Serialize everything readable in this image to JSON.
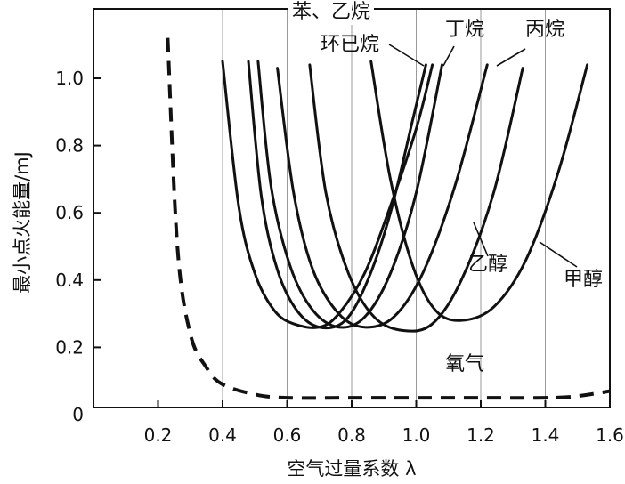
{
  "chart_data": {
    "type": "line",
    "title": "",
    "xlabel": "空气过量系数 λ",
    "ylabel": "最小点火能量/mJ",
    "xlim": [
      0,
      1.6
    ],
    "ylim": [
      0,
      1.15
    ],
    "xticks": [
      "0.2",
      "0.4",
      "0.6",
      "0.8",
      "1.0",
      "1.2",
      "1.4",
      "1.6"
    ],
    "yticks": [
      "0",
      "0.2",
      "0.4",
      "0.6",
      "0.8",
      "1.0"
    ],
    "grid": "vertical",
    "annotations": [
      "苯、乙烷",
      "环已烷",
      "丁烷",
      "丙烷",
      "乙醇",
      "甲醇",
      "氧气"
    ],
    "series": [
      {
        "name": "氧气",
        "style": "dashed",
        "x": [
          0.23,
          0.26,
          0.3,
          0.35,
          0.4,
          0.5,
          0.6,
          0.8,
          1.0,
          1.2,
          1.4,
          1.5,
          1.6
        ],
        "y": [
          1.12,
          0.5,
          0.24,
          0.14,
          0.09,
          0.06,
          0.05,
          0.05,
          0.05,
          0.05,
          0.05,
          0.055,
          0.07
        ]
      },
      {
        "name": "苯、乙烷",
        "style": "solid",
        "x": [
          0.4,
          0.45,
          0.5,
          0.56,
          0.62,
          0.7,
          0.76,
          0.84,
          0.92,
          1.0,
          1.05
        ],
        "y": [
          1.05,
          0.62,
          0.42,
          0.31,
          0.27,
          0.26,
          0.3,
          0.42,
          0.62,
          0.85,
          1.04
        ]
      },
      {
        "name": "环已烷",
        "style": "solid",
        "x": [
          0.48,
          0.52,
          0.57,
          0.63,
          0.7,
          0.78,
          0.85,
          0.92,
          0.99,
          1.03
        ],
        "y": [
          1.05,
          0.65,
          0.43,
          0.31,
          0.26,
          0.28,
          0.4,
          0.6,
          0.88,
          1.04
        ]
      },
      {
        "name": "丁烷",
        "style": "solid",
        "x": [
          0.51,
          0.55,
          0.61,
          0.68,
          0.76,
          0.84,
          0.92,
          1.0,
          1.08
        ],
        "y": [
          1.05,
          0.68,
          0.44,
          0.31,
          0.26,
          0.29,
          0.42,
          0.66,
          1.04
        ]
      },
      {
        "name": "丙烷",
        "style": "solid",
        "x": [
          0.57,
          0.62,
          0.68,
          0.76,
          0.84,
          0.93,
          1.02,
          1.12,
          1.22
        ],
        "y": [
          1.03,
          0.66,
          0.43,
          0.3,
          0.26,
          0.29,
          0.42,
          0.68,
          1.04
        ]
      },
      {
        "name": "乙醇",
        "style": "solid",
        "x": [
          0.67,
          0.72,
          0.79,
          0.87,
          0.96,
          1.05,
          1.14,
          1.24,
          1.33
        ],
        "y": [
          1.04,
          0.66,
          0.42,
          0.29,
          0.25,
          0.27,
          0.4,
          0.66,
          1.03
        ]
      },
      {
        "name": "甲醇",
        "style": "solid",
        "x": [
          0.86,
          0.92,
          0.99,
          1.06,
          1.14,
          1.24,
          1.34,
          1.44,
          1.53
        ],
        "y": [
          1.05,
          0.7,
          0.44,
          0.31,
          0.28,
          0.32,
          0.46,
          0.72,
          1.04
        ]
      }
    ]
  }
}
